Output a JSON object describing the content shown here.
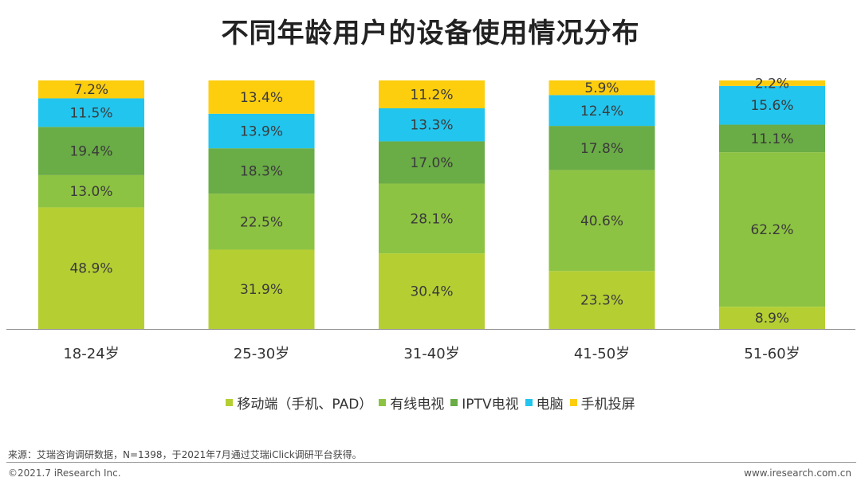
{
  "title": "不同年龄用户的设备使用情况分布",
  "chart_data": {
    "type": "bar",
    "stacked": true,
    "normalized": true,
    "categories": [
      "18-24岁",
      "25-30岁",
      "31-40岁",
      "41-50岁",
      "51-60岁"
    ],
    "series": [
      {
        "name": "移动端（手机、PAD）",
        "color": "#b5cf33",
        "values": [
          48.9,
          31.9,
          30.4,
          23.3,
          8.9
        ],
        "labels": [
          "48.9%",
          "31.9%",
          "30.4%",
          "23.3%",
          "8.9%"
        ]
      },
      {
        "name": "有线电视",
        "color": "#8dc342",
        "values": [
          13.0,
          22.5,
          28.1,
          40.6,
          62.2
        ],
        "labels": [
          "13.0%",
          "22.5%",
          "28.1%",
          "40.6%",
          "62.2%"
        ]
      },
      {
        "name": "IPTV电视",
        "color": "#6aac46",
        "values": [
          19.4,
          18.3,
          17.0,
          17.8,
          11.1
        ],
        "labels": [
          "19.4%",
          "18.3%",
          "17.0%",
          "17.8%",
          "11.1%"
        ]
      },
      {
        "name": "电脑",
        "color": "#22c5ee",
        "values": [
          11.5,
          13.9,
          13.3,
          12.4,
          15.6
        ],
        "labels": [
          "11.5%",
          "13.9%",
          "13.3%",
          "12.4%",
          "15.6%"
        ]
      },
      {
        "name": "手机投屏",
        "color": "#fdce0e",
        "values": [
          7.2,
          13.4,
          11.2,
          5.9,
          2.2
        ],
        "labels": [
          "7.2%",
          "13.4%",
          "11.2%",
          "5.9%",
          "2.2%"
        ]
      }
    ],
    "ylim": [
      0,
      100
    ],
    "grid": false,
    "legend_position": "bottom"
  },
  "footer": {
    "source": "来源：艾瑞咨询调研数据，N=1398，于2021年7月通过艾瑞iClick调研平台获得。",
    "copyright": "©2021.7 iResearch Inc.",
    "website": "www.iresearch.com.cn"
  }
}
